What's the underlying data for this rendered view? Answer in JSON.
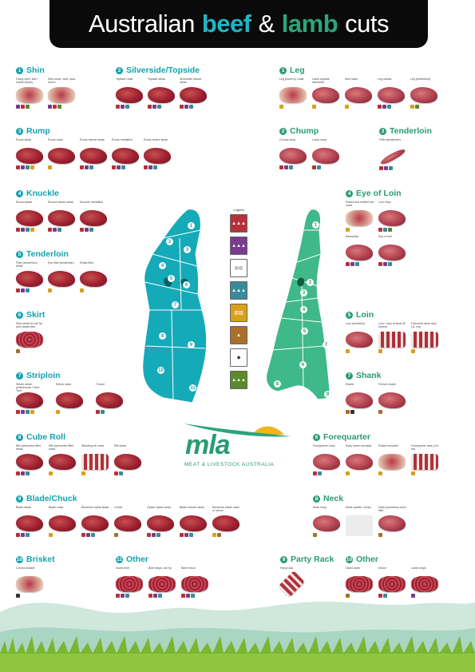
{
  "header": {
    "part1": "Australian",
    "beef": "beef",
    "amp": "&",
    "lamb": "lamb",
    "part2": "cuts"
  },
  "legend": {
    "title": "Legend"
  },
  "logo": {
    "text": "mla",
    "sub": "MEAT & LIVESTOCK AUSTRALIA"
  },
  "beef_sections": [
    {
      "num": "1",
      "title": "Shin",
      "cuts": [
        "Gravy beef, shin / shank (bone)",
        "Shin meat, veal, osso bucco"
      ]
    },
    {
      "num": "2",
      "title": "Silverside/Topside",
      "cuts": [
        "Topside roast",
        "Topside steak",
        "Silverside minute steak"
      ]
    },
    {
      "num": "3",
      "title": "Rump",
      "cuts": [
        "Rump steak",
        "Rump roast",
        "Rump minute steak",
        "Rump medallion",
        "Rump centre steak"
      ]
    },
    {
      "num": "4",
      "title": "Knuckle",
      "cuts": [
        "Round steak",
        "Round minute steak",
        "Knuckle medallion"
      ]
    },
    {
      "num": "5",
      "title": "Tenderloin",
      "cuts": [
        "Fillet (tenderloin) steak",
        "Eye fillet (tenderloin)",
        "Roast fillet"
      ]
    },
    {
      "num": "6",
      "title": "Skirt",
      "cuts": [
        "Skirt steak for stir fry and casseroles"
      ]
    },
    {
      "num": "7",
      "title": "Striploin",
      "cuts": [
        "Sirloin steak, porterhouse / New York",
        "Sirloin roast",
        "T-bone"
      ]
    },
    {
      "num": "8",
      "title": "Cube Roll",
      "cuts": [
        "Rib eye/scotch fillet steak",
        "Rib eye/scotch fillet roast",
        "Standing rib roast",
        "Rib steak"
      ]
    },
    {
      "num": "9",
      "title": "Blade/Chuck",
      "cuts": [
        "Blade steak",
        "Blade roast",
        "Boneless blade steak",
        "Chuck",
        "Oyster blade steak",
        "Blade minute steak",
        "Boneless blade roast or mince"
      ]
    },
    {
      "num": "10",
      "title": "Brisket",
      "cuts": [
        "Corned brisket"
      ]
    },
    {
      "num": "11",
      "title": "Other",
      "cuts": [
        "Diced beef",
        "Beef strips, stir fry",
        "Beef mince"
      ]
    }
  ],
  "lamb_sections": [
    {
      "num": "1",
      "title": "Leg",
      "cuts": [
        "Leg (bone-in) roast",
        "Lamb topside, silverside",
        "Mini roast",
        "Leg steaks",
        "Leg (butterflied)"
      ]
    },
    {
      "num": "2",
      "title": "Chump",
      "cuts": [
        "Chump chop",
        "Lamb rump"
      ]
    },
    {
      "num": "3",
      "title": "Tenderloin",
      "cuts": [
        "Fillet (tenderloin)"
      ]
    },
    {
      "num": "4",
      "title": "Eye of Loin",
      "cuts": [
        "Rolled and stuffed loin roast",
        "Loin chop",
        "Backstrap",
        "Eye of loin"
      ]
    },
    {
      "num": "5",
      "title": "Loin",
      "cuts": [
        "Loin (shortloin)",
        "Loin / rack of lamb (8 bones)",
        "Frenched lamb rack (11 cut)"
      ]
    },
    {
      "num": "7",
      "title": "Shank",
      "cuts": [
        "Shank",
        "French shank"
      ]
    },
    {
      "num": "6",
      "title": "Forequarter",
      "cuts": [
        "Forequarter chop",
        "Easy carve shoulder",
        "Rolled shoulder",
        "Forequarter rack (4-6 rib)"
      ]
    },
    {
      "num": "8",
      "title": "Neck",
      "cuts": [
        "Neck chop",
        "Neck rosette, chops",
        "Neck (boneless) neck fillet"
      ]
    },
    {
      "num": "9",
      "title": "Party Rack",
      "cuts": [
        "Party rack"
      ]
    },
    {
      "num": "10",
      "title": "Other",
      "cuts": [
        "Diced lamb",
        "Mince",
        "Lamb strips"
      ]
    }
  ],
  "beef_map_numbers": [
    "1",
    "2",
    "3",
    "4",
    "5",
    "6",
    "7",
    "8",
    "9",
    "10",
    "11"
  ],
  "lamb_map_numbers": [
    "1",
    "2",
    "3",
    "4",
    "5",
    "6",
    "7",
    "8",
    "9"
  ],
  "colors": {
    "beef": "#12a3b0",
    "lamb": "#2a9b72",
    "header_bg": "#0a0a0a",
    "meat": "#9e2030"
  }
}
